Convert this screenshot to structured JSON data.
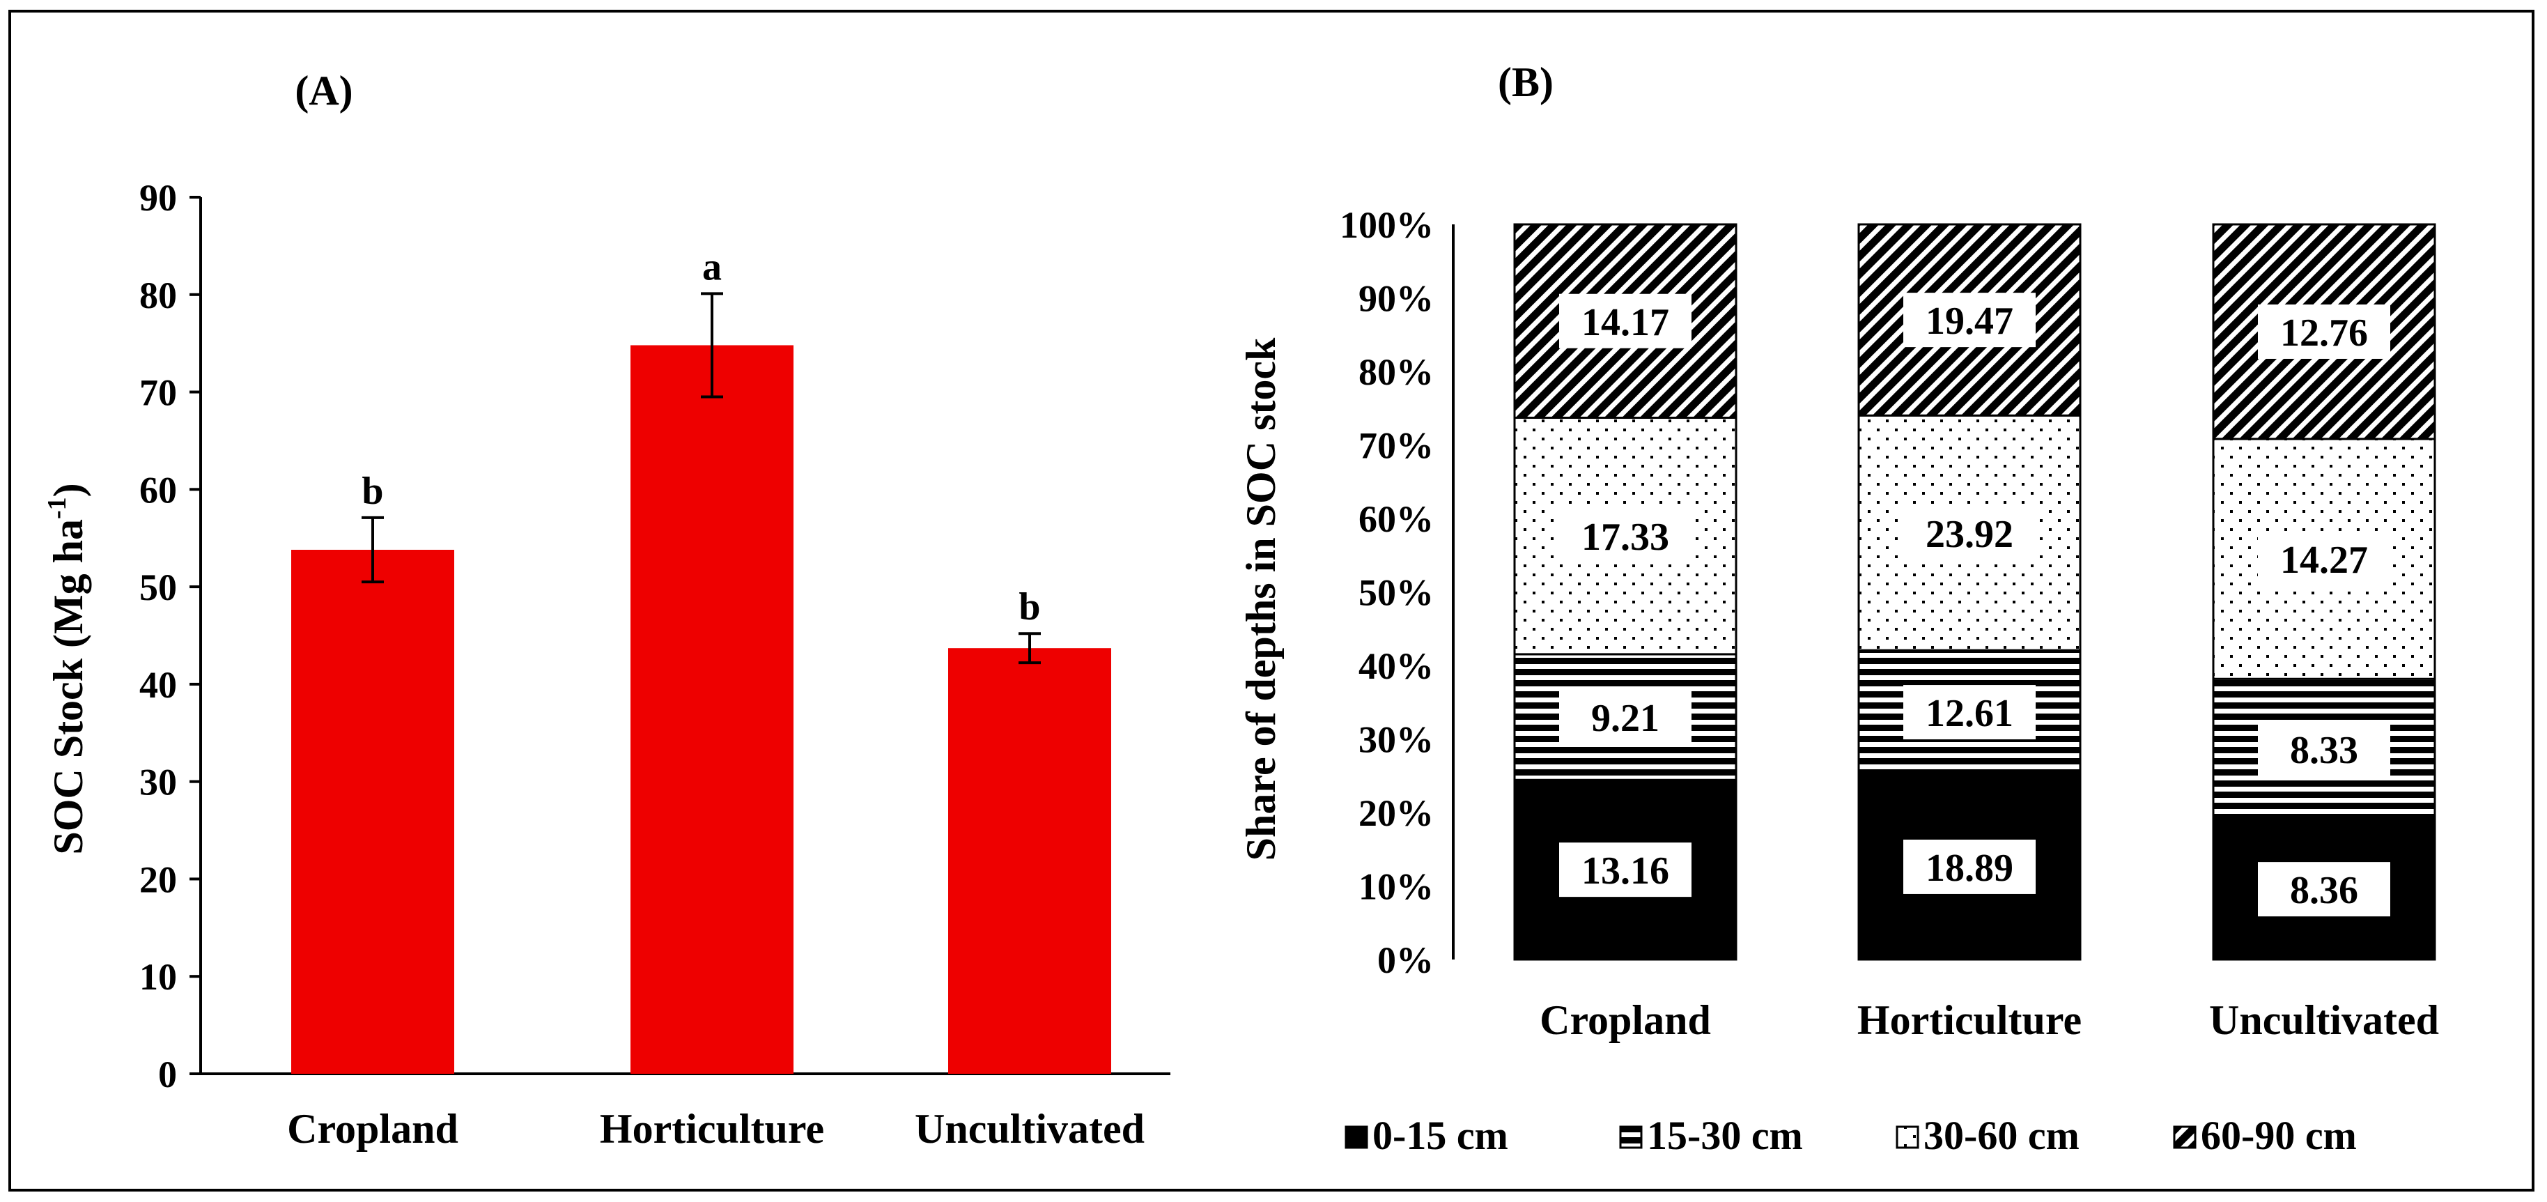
{
  "chart_data": [
    {
      "type": "bar",
      "panel_label": "(A)",
      "title": "",
      "xlabel": "",
      "ylabel": "SOC Stock (Mg ha",
      "ylabel_sup": "-1",
      "ylabel_end": ")",
      "categories": [
        "Cropland",
        "Horticulture",
        "Uncultivated"
      ],
      "values": [
        53.8,
        74.8,
        43.7
      ],
      "errors": [
        3.3,
        5.3,
        1.5
      ],
      "significance": [
        "b",
        "a",
        "b"
      ],
      "ylim": [
        0,
        90
      ],
      "yticks": [
        0,
        10,
        20,
        30,
        40,
        50,
        60,
        70,
        80,
        90
      ],
      "bar_color": "#ee0000",
      "grid": false
    },
    {
      "type": "bar",
      "stacked_percent": true,
      "panel_label": "(B)",
      "title": "",
      "xlabel": "",
      "ylabel": "Share of depths in SOC stock",
      "categories": [
        "Cropland",
        "Horticulture",
        "Uncultivated"
      ],
      "ylim": [
        0,
        100
      ],
      "yticks": [
        "0%",
        "10%",
        "20%",
        "30%",
        "40%",
        "50%",
        "60%",
        "70%",
        "80%",
        "90%",
        "100%"
      ],
      "series": [
        {
          "name": "0-15 cm",
          "pattern": "solid",
          "values": [
            13.16,
            18.89,
            8.36
          ]
        },
        {
          "name": "15-30 cm",
          "pattern": "horizontal-stripes",
          "values": [
            9.21,
            12.61,
            8.33
          ]
        },
        {
          "name": "30-60 cm",
          "pattern": "dots",
          "values": [
            17.33,
            23.92,
            14.27
          ]
        },
        {
          "name": "60-90 cm",
          "pattern": "diagonal-hatch",
          "values": [
            14.17,
            19.47,
            12.76
          ]
        }
      ],
      "legend_position": "bottom",
      "grid": false
    }
  ]
}
